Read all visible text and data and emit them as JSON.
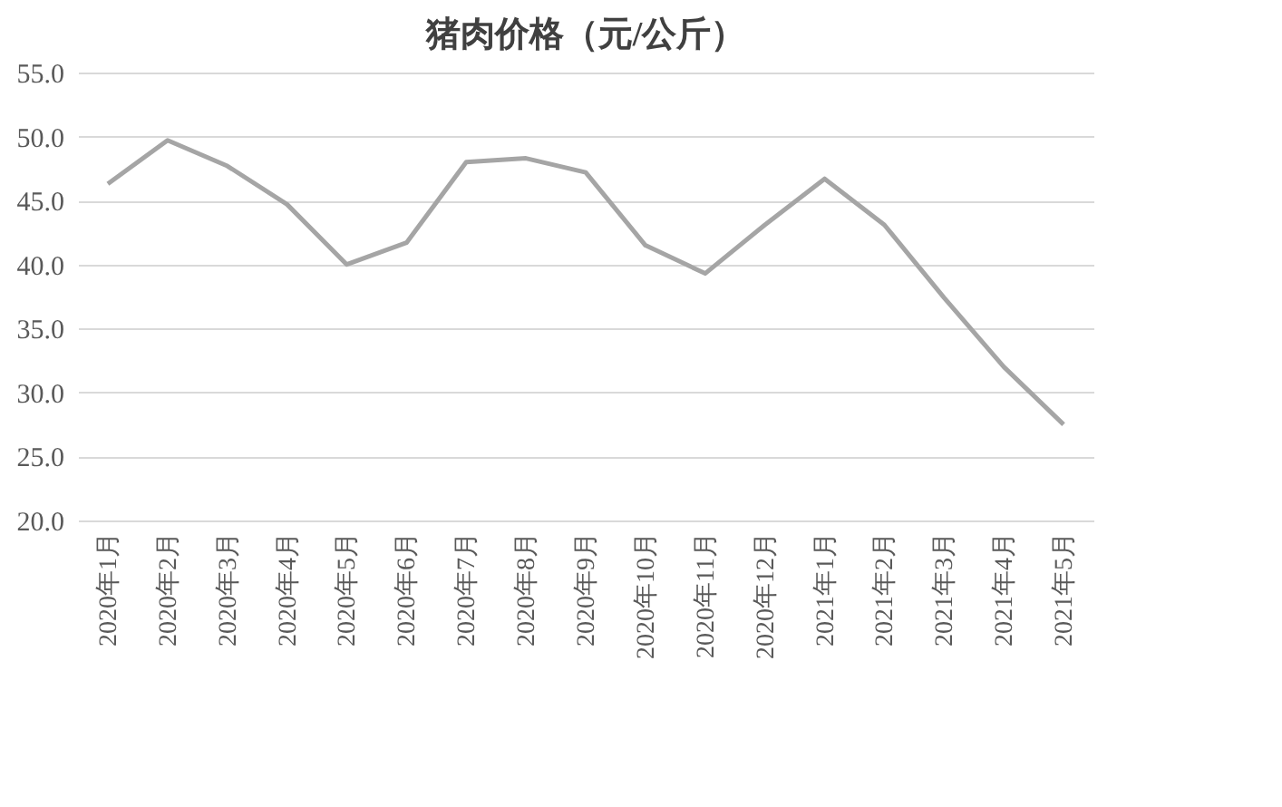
{
  "chart_data": {
    "type": "line",
    "title": "猪肉价格（元/公斤）",
    "categories": [
      "2020年1月",
      "2020年2月",
      "2020年3月",
      "2020年4月",
      "2020年5月",
      "2020年6月",
      "2020年7月",
      "2020年8月",
      "2020年9月",
      "2020年10月",
      "2020年11月",
      "2020年12月",
      "2021年1月",
      "2021年2月",
      "2021年3月",
      "2021年4月",
      "2021年5月"
    ],
    "series": [
      {
        "color": "#a5a5a5",
        "values": [
          46.3,
          49.7,
          47.7,
          44.7,
          40.0,
          41.7,
          48.0,
          48.3,
          47.2,
          41.5,
          39.3,
          43.1,
          46.7,
          43.1,
          37.4,
          32.0,
          27.5
        ]
      }
    ],
    "ylim": [
      20,
      55
    ],
    "yticks": [
      {
        "value": 20,
        "label": "20.0"
      },
      {
        "value": 25,
        "label": "25.0"
      },
      {
        "value": 30,
        "label": "30.0"
      },
      {
        "value": 35,
        "label": "35.0"
      },
      {
        "value": 40,
        "label": "40.0"
      },
      {
        "value": 45,
        "label": "45.0"
      },
      {
        "value": 50,
        "label": "50.0"
      },
      {
        "value": 55,
        "label": "55.0"
      }
    ],
    "grid": "y",
    "legend": false,
    "marker": "none",
    "line_style": "solid"
  }
}
